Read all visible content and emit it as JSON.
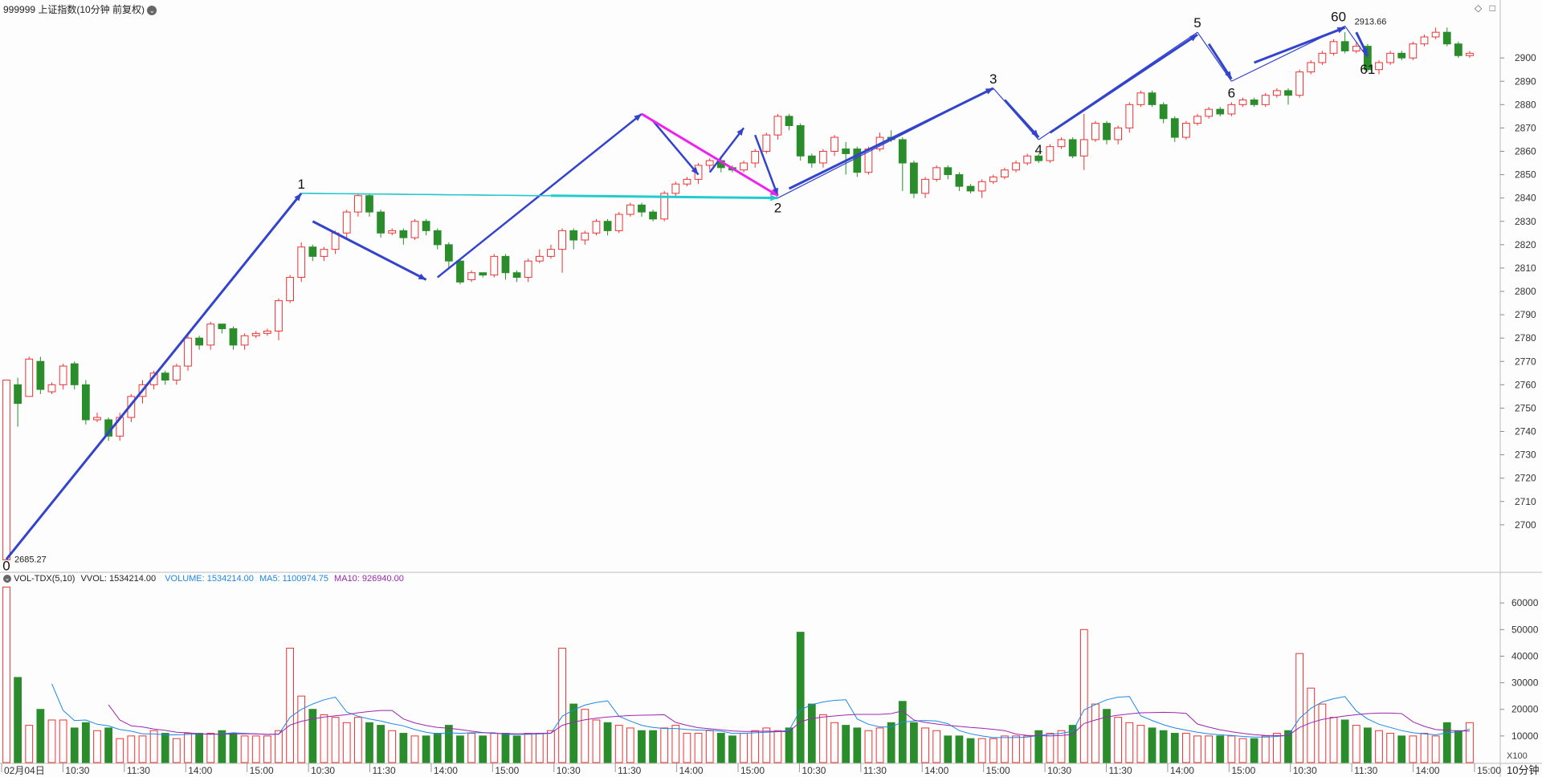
{
  "header": {
    "title": "999999 上证指数(10分钟 前复权)",
    "top_right_icons": [
      "◇",
      "□"
    ]
  },
  "vol_header": {
    "name": "VOL-TDX(5,10)",
    "vvol": "VVOL: 1534214.00",
    "volume": "VOLUME: 1534214.00",
    "ma5": "MA5: 1100974.75",
    "ma10": "MA10: 926940.00"
  },
  "period_label": "10分钟",
  "vol_unit": "X100",
  "colors": {
    "up": "#ee3333",
    "down": "#2a8c2a",
    "wave": "#3344cc",
    "cyan": "#22cccc",
    "magenta": "#ee22ee",
    "ma5": "#1e88e5",
    "ma10": "#9c27b0",
    "grid": "#d8d8d8"
  },
  "chart_data": {
    "type": "candlestick",
    "price_axis": {
      "ticks": [
        2700,
        2710,
        2720,
        2730,
        2740,
        2750,
        2760,
        2770,
        2780,
        2790,
        2800,
        2810,
        2820,
        2830,
        2840,
        2850,
        2860,
        2870,
        2880,
        2890,
        2900
      ],
      "range": [
        2680,
        2920
      ]
    },
    "volume_axis": {
      "ticks": [
        10000,
        20000,
        30000,
        40000,
        50000,
        60000
      ],
      "range": [
        0,
        67000
      ]
    },
    "x_ticks": [
      "02月04日",
      "10:30",
      "11:30",
      "14:00",
      "15:00",
      "10:30",
      "11:30",
      "14:00",
      "15:00",
      "10:30",
      "11:30",
      "14:00",
      "15:00",
      "10:30",
      "11:30",
      "14:00",
      "15:00",
      "10:30",
      "11:30",
      "14:00",
      "15:00",
      "10:30",
      "11:30",
      "14:00",
      "15:00"
    ],
    "price_annotations": {
      "low": "2685.27",
      "high": "2913.66"
    },
    "wave_labels": [
      {
        "label": "0",
        "bar": 0,
        "price": 2685.27
      },
      {
        "label": "1",
        "bar": 26,
        "price": 2842
      },
      {
        "label": "2",
        "bar": 68,
        "price": 2840
      },
      {
        "label": "3",
        "bar": 87,
        "price": 2887
      },
      {
        "label": "4",
        "bar": 91,
        "price": 2865
      },
      {
        "label": "5",
        "bar": 105,
        "price": 2911
      },
      {
        "label": "6",
        "bar": 108,
        "price": 2890
      },
      {
        "label": "60",
        "bar": 118,
        "price": 2913.66
      },
      {
        "label": "61",
        "bar": 120,
        "price": 2900
      }
    ],
    "bars": [
      [
        2685,
        2762,
        2685,
        2760,
        66000
      ],
      [
        2760,
        2752,
        2742,
        2763,
        32000
      ],
      [
        2755,
        2771,
        2755,
        2772,
        14000
      ],
      [
        2770,
        2758,
        2756,
        2772,
        20000
      ],
      [
        2757,
        2760,
        2756,
        2761,
        16000
      ],
      [
        2760,
        2768,
        2758,
        2769,
        16000
      ],
      [
        2769,
        2760,
        2758,
        2770,
        13000
      ],
      [
        2760,
        2745,
        2743,
        2762,
        15000
      ],
      [
        2745,
        2746,
        2744,
        2748,
        12000
      ],
      [
        2745,
        2738,
        2736,
        2746,
        13000
      ],
      [
        2738,
        2746,
        2736,
        2748,
        9000
      ],
      [
        2746,
        2755,
        2744,
        2756,
        10000
      ],
      [
        2755,
        2760,
        2752,
        2762,
        10000
      ],
      [
        2760,
        2765,
        2758,
        2766,
        12000
      ],
      [
        2765,
        2762,
        2760,
        2766,
        11000
      ],
      [
        2762,
        2768,
        2760,
        2769,
        9000
      ],
      [
        2768,
        2780,
        2766,
        2781,
        11000
      ],
      [
        2780,
        2777,
        2775,
        2781,
        11000
      ],
      [
        2777,
        2786,
        2775,
        2787,
        11000
      ],
      [
        2786,
        2784,
        2782,
        2786,
        12000
      ],
      [
        2784,
        2777,
        2775,
        2785,
        11000
      ],
      [
        2777,
        2781,
        2775,
        2782,
        10000
      ],
      [
        2781,
        2782,
        2780,
        2783,
        10000
      ],
      [
        2782,
        2783,
        2781,
        2784,
        10000
      ],
      [
        2783,
        2796,
        2779,
        2797,
        12000
      ],
      [
        2796,
        2806,
        2795,
        2807,
        43000
      ],
      [
        2806,
        2819,
        2804,
        2821,
        25000
      ],
      [
        2819,
        2815,
        2813,
        2820,
        20000
      ],
      [
        2815,
        2818,
        2813,
        2819,
        18000
      ],
      [
        2818,
        2825,
        2816,
        2826,
        17000
      ],
      [
        2825,
        2834,
        2823,
        2835,
        15000
      ],
      [
        2834,
        2841,
        2832,
        2842,
        17000
      ],
      [
        2841,
        2834,
        2832,
        2842,
        15000
      ],
      [
        2834,
        2825,
        2823,
        2835,
        14000
      ],
      [
        2825,
        2826,
        2824,
        2827,
        12000
      ],
      [
        2826,
        2823,
        2820,
        2827,
        11000
      ],
      [
        2823,
        2830,
        2822,
        2831,
        10000
      ],
      [
        2830,
        2826,
        2824,
        2831,
        10000
      ],
      [
        2826,
        2820,
        2818,
        2827,
        11000
      ],
      [
        2820,
        2813,
        2810,
        2821,
        14000
      ],
      [
        2813,
        2804,
        2803,
        2814,
        10000
      ],
      [
        2805,
        2808,
        2804,
        2809,
        11000
      ],
      [
        2808,
        2807,
        2806,
        2808,
        10000
      ],
      [
        2807,
        2815,
        2806,
        2816,
        11000
      ],
      [
        2815,
        2808,
        2805,
        2816,
        11000
      ],
      [
        2808,
        2806,
        2804,
        2809,
        10000
      ],
      [
        2806,
        2813,
        2804,
        2814,
        11000
      ],
      [
        2813,
        2815,
        2812,
        2818,
        11000
      ],
      [
        2815,
        2818,
        2814,
        2820,
        12000
      ],
      [
        2818,
        2826,
        2808,
        2827,
        43000
      ],
      [
        2826,
        2822,
        2818,
        2827,
        22000
      ],
      [
        2822,
        2825,
        2820,
        2826,
        20000
      ],
      [
        2825,
        2830,
        2824,
        2831,
        16000
      ],
      [
        2830,
        2826,
        2824,
        2831,
        15000
      ],
      [
        2826,
        2833,
        2825,
        2834,
        14000
      ],
      [
        2833,
        2837,
        2832,
        2838,
        13000
      ],
      [
        2837,
        2834,
        2832,
        2838,
        12000
      ],
      [
        2834,
        2831,
        2830,
        2835,
        12000
      ],
      [
        2831,
        2842,
        2830,
        2843,
        13000
      ],
      [
        2842,
        2846,
        2840,
        2847,
        14000
      ],
      [
        2846,
        2848,
        2845,
        2849,
        11000
      ],
      [
        2848,
        2854,
        2846,
        2855,
        11000
      ],
      [
        2854,
        2856,
        2852,
        2857,
        12000
      ],
      [
        2856,
        2853,
        2851,
        2857,
        11000
      ],
      [
        2853,
        2852,
        2851,
        2854,
        10000
      ],
      [
        2852,
        2855,
        2851,
        2856,
        11000
      ],
      [
        2855,
        2860,
        2853,
        2861,
        12000
      ],
      [
        2860,
        2867,
        2859,
        2868,
        13000
      ],
      [
        2867,
        2875,
        2865,
        2876,
        12000
      ],
      [
        2875,
        2871,
        2869,
        2876,
        13000
      ],
      [
        2871,
        2858,
        2856,
        2872,
        49000
      ],
      [
        2858,
        2855,
        2853,
        2859,
        22000
      ],
      [
        2855,
        2860,
        2853,
        2861,
        18000
      ],
      [
        2860,
        2866,
        2858,
        2867,
        15000
      ],
      [
        2861,
        2859,
        2850,
        2864,
        14000
      ],
      [
        2861,
        2851,
        2849,
        2862,
        13000
      ],
      [
        2851,
        2861,
        2850,
        2862,
        12000
      ],
      [
        2861,
        2866,
        2860,
        2868,
        13000
      ],
      [
        2866,
        2865,
        2864,
        2869,
        15000
      ],
      [
        2865,
        2855,
        2843,
        2866,
        23000
      ],
      [
        2855,
        2842,
        2840,
        2856,
        15000
      ],
      [
        2842,
        2848,
        2840,
        2849,
        13000
      ],
      [
        2848,
        2853,
        2847,
        2854,
        12000
      ],
      [
        2853,
        2850,
        2848,
        2854,
        10000
      ],
      [
        2850,
        2845,
        2843,
        2851,
        10000
      ],
      [
        2845,
        2843,
        2842,
        2846,
        9000
      ],
      [
        2843,
        2847,
        2840,
        2848,
        9000
      ],
      [
        2847,
        2849,
        2846,
        2850,
        9000
      ],
      [
        2849,
        2852,
        2848,
        2853,
        10000
      ],
      [
        2852,
        2855,
        2851,
        2856,
        10000
      ],
      [
        2855,
        2858,
        2854,
        2859,
        10000
      ],
      [
        2858,
        2856,
        2855,
        2859,
        12000
      ],
      [
        2856,
        2862,
        2855,
        2863,
        11000
      ],
      [
        2862,
        2865,
        2861,
        2866,
        12000
      ],
      [
        2865,
        2858,
        2857,
        2866,
        14000
      ],
      [
        2858,
        2865,
        2852,
        2876,
        50000
      ],
      [
        2865,
        2872,
        2864,
        2873,
        22000
      ],
      [
        2872,
        2865,
        2863,
        2873,
        20000
      ],
      [
        2865,
        2870,
        2863,
        2871,
        17000
      ],
      [
        2870,
        2880,
        2868,
        2881,
        15000
      ],
      [
        2880,
        2885,
        2879,
        2886,
        14000
      ],
      [
        2885,
        2880,
        2879,
        2886,
        13000
      ],
      [
        2880,
        2874,
        2872,
        2881,
        12000
      ],
      [
        2874,
        2866,
        2864,
        2875,
        11000
      ],
      [
        2866,
        2872,
        2865,
        2873,
        11000
      ],
      [
        2872,
        2875,
        2871,
        2876,
        10000
      ],
      [
        2875,
        2878,
        2874,
        2879,
        10000
      ],
      [
        2878,
        2876,
        2875,
        2879,
        10000
      ],
      [
        2876,
        2880,
        2875,
        2881,
        10000
      ],
      [
        2880,
        2882,
        2879,
        2883,
        9000
      ],
      [
        2882,
        2880,
        2879,
        2883,
        9000
      ],
      [
        2880,
        2884,
        2879,
        2885,
        10000
      ],
      [
        2884,
        2886,
        2883,
        2887,
        11000
      ],
      [
        2886,
        2884,
        2880,
        2887,
        12000
      ],
      [
        2884,
        2894,
        2883,
        2895,
        41000
      ],
      [
        2894,
        2898,
        2893,
        2899,
        28000
      ],
      [
        2898,
        2902,
        2897,
        2903,
        22000
      ],
      [
        2902,
        2907,
        2901,
        2908,
        17000
      ],
      [
        2907,
        2903,
        2902,
        2911,
        16000
      ],
      [
        2903,
        2905,
        2902,
        2907,
        14000
      ],
      [
        2905,
        2895,
        2894,
        2906,
        13000
      ],
      [
        2895,
        2898,
        2893,
        2899,
        12000
      ],
      [
        2898,
        2902,
        2897,
        2903,
        11000
      ],
      [
        2902,
        2900,
        2899,
        2903,
        10000
      ],
      [
        2900,
        2906,
        2899,
        2907,
        10000
      ],
      [
        2906,
        2909,
        2905,
        2910,
        11000
      ],
      [
        2909,
        2911,
        2908,
        2913,
        10000
      ],
      [
        2911,
        2906,
        2905,
        2913,
        15000
      ],
      [
        2906,
        2901,
        2900,
        2907,
        12000
      ],
      [
        2901,
        2902,
        2900,
        2903,
        15000
      ]
    ]
  }
}
